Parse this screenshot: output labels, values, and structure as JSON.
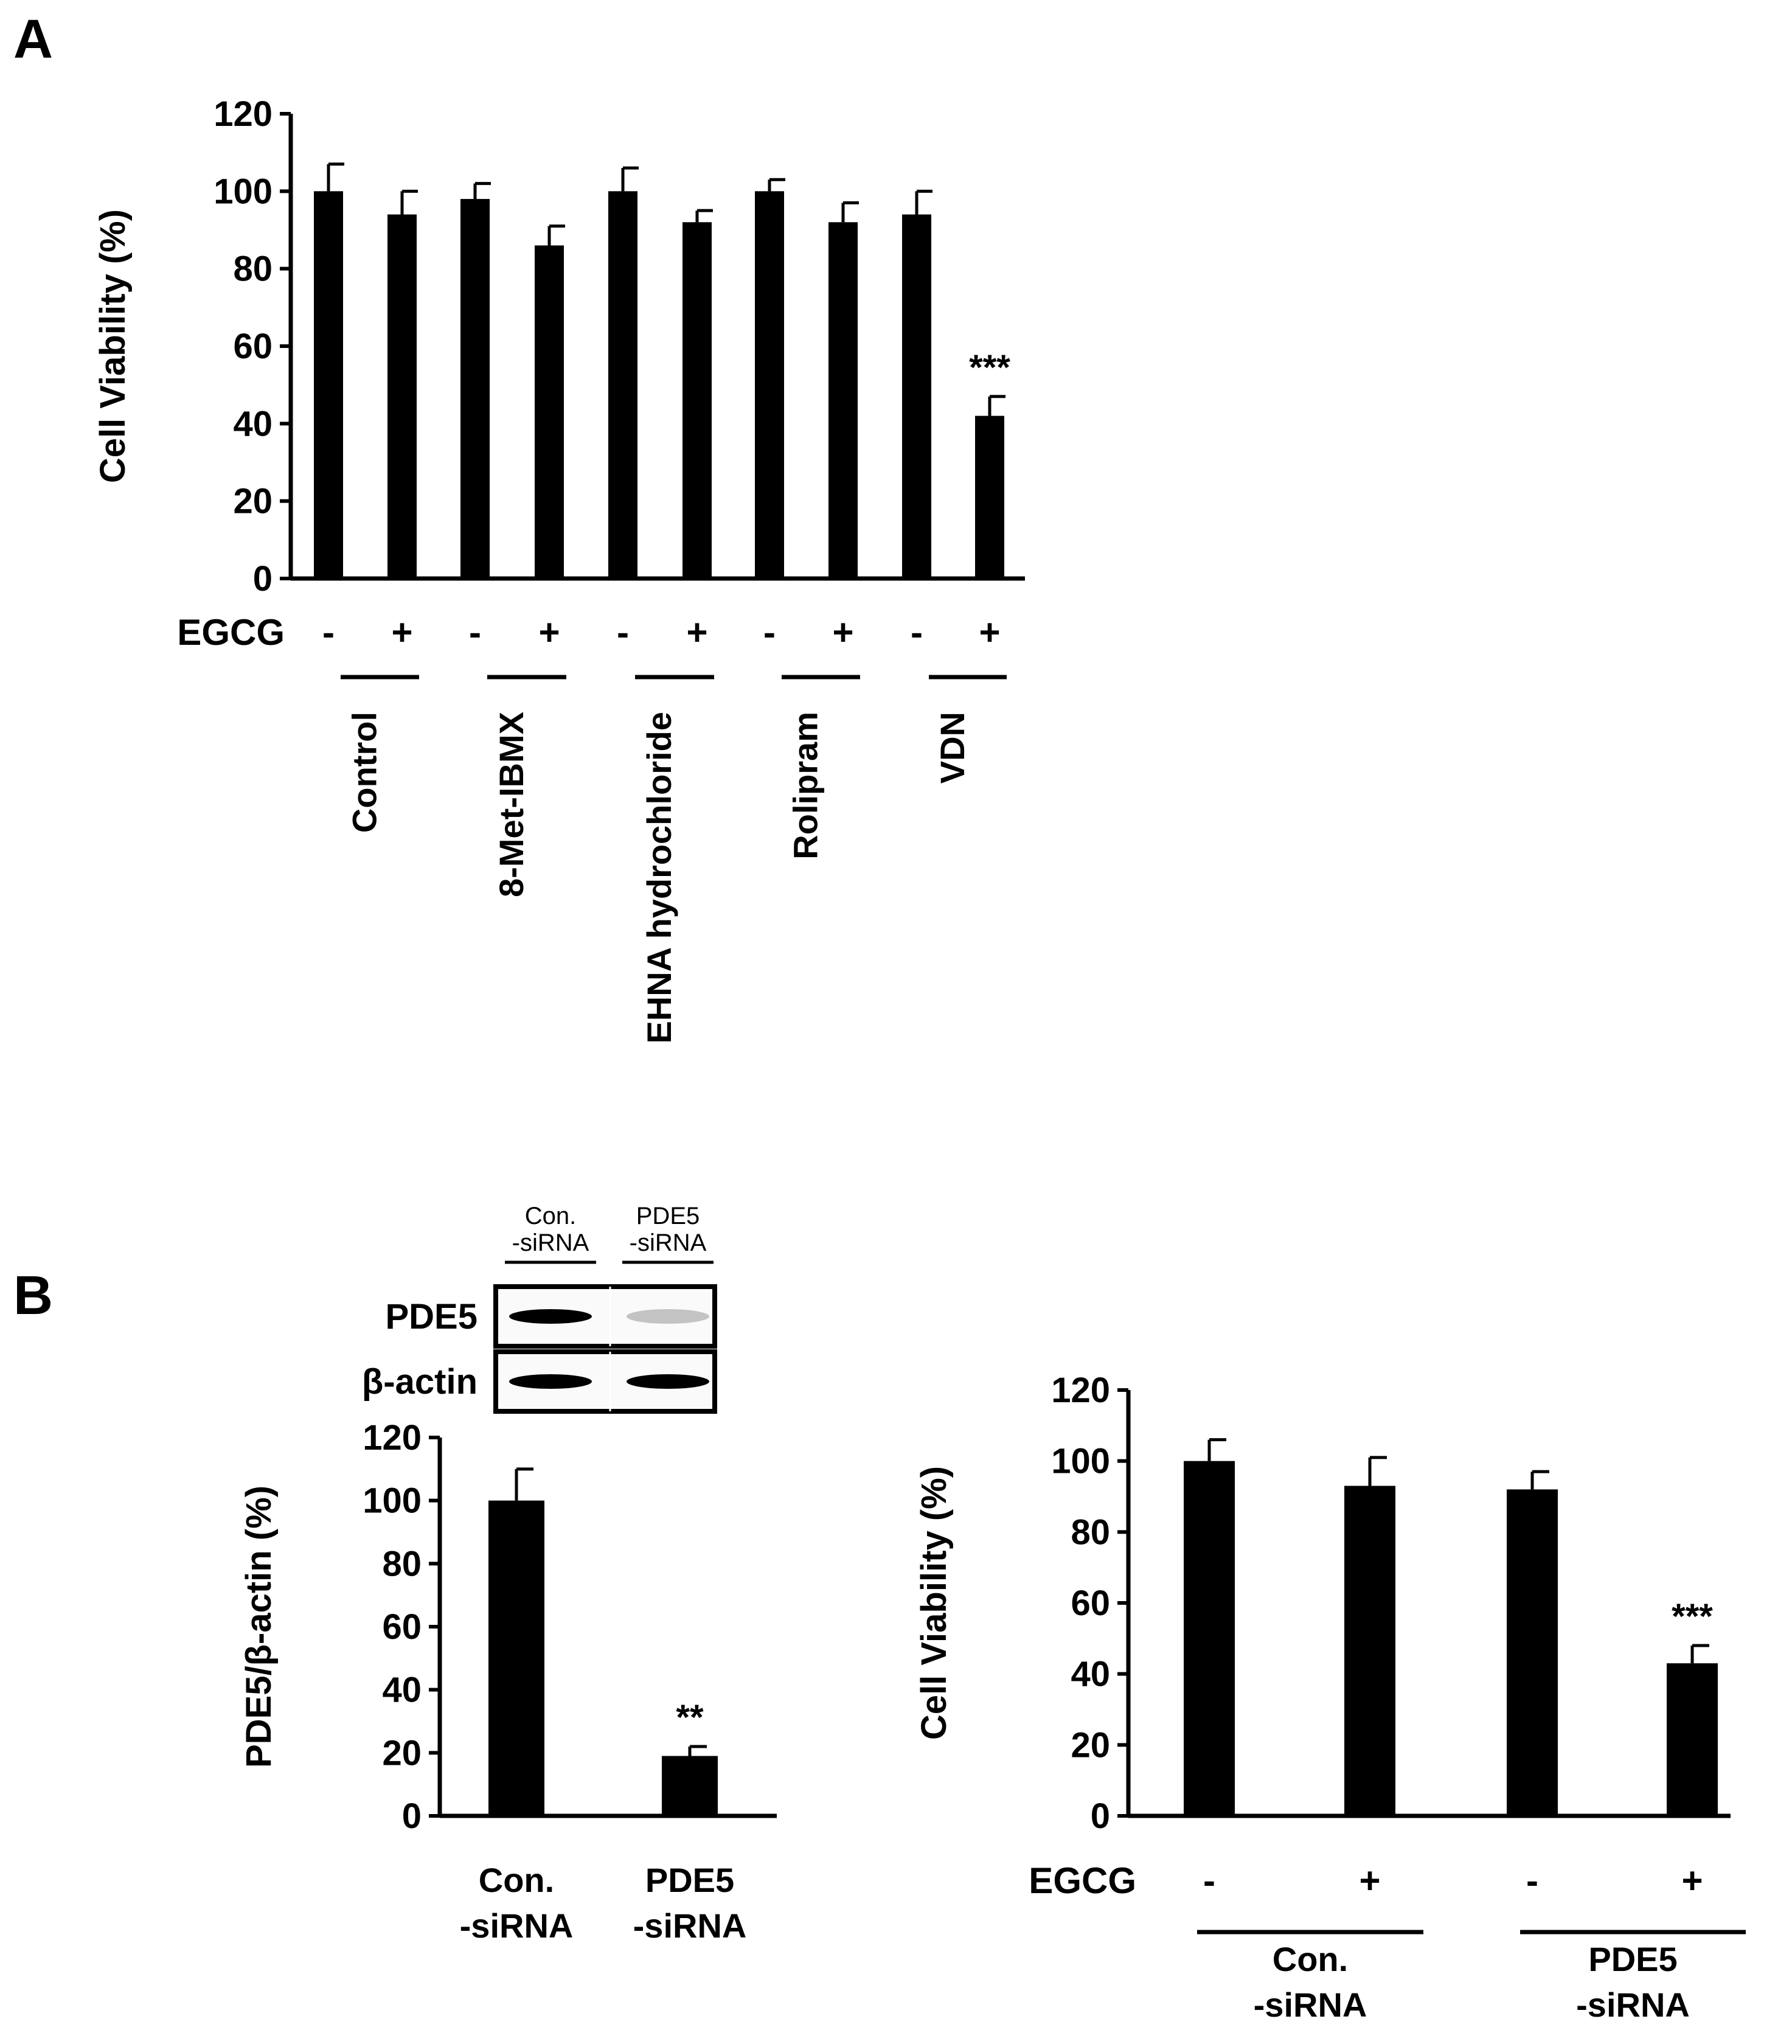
{
  "panels": {
    "a_label": "A",
    "b_label": "B"
  },
  "chart_data": [
    {
      "id": "A",
      "type": "bar",
      "ylabel": "Cell Viability (%)",
      "ylim": [
        0,
        120
      ],
      "yticks": [
        0,
        20,
        40,
        60,
        80,
        100,
        120
      ],
      "row_label": "EGCG",
      "bars": [
        {
          "egcg": "-",
          "value": 100,
          "error": 7
        },
        {
          "egcg": "+",
          "value": 94,
          "error": 6
        },
        {
          "egcg": "-",
          "value": 98,
          "error": 4
        },
        {
          "egcg": "+",
          "value": 86,
          "error": 5
        },
        {
          "egcg": "-",
          "value": 100,
          "error": 6
        },
        {
          "egcg": "+",
          "value": 92,
          "error": 3
        },
        {
          "egcg": "-",
          "value": 100,
          "error": 3
        },
        {
          "egcg": "+",
          "value": 92,
          "error": 5
        },
        {
          "egcg": "-",
          "value": 94,
          "error": 6
        },
        {
          "egcg": "+",
          "value": 42,
          "error": 5,
          "significance": "***"
        }
      ],
      "groups": [
        "Control",
        "8-Met-IBMX",
        "EHNA hydrochloride",
        "Rolipram",
        "VDN"
      ]
    },
    {
      "id": "B-left",
      "type": "bar",
      "ylabel": "PDE5/β-actin (%)",
      "ylim": [
        0,
        120
      ],
      "yticks": [
        0,
        20,
        40,
        60,
        80,
        100,
        120
      ],
      "bars": [
        {
          "value": 100,
          "error": 10
        },
        {
          "value": 19,
          "error": 3,
          "significance": "**"
        }
      ],
      "categories": [
        [
          "Con.",
          "-siRNA"
        ],
        [
          "PDE5",
          "-siRNA"
        ]
      ]
    },
    {
      "id": "B-right",
      "type": "bar",
      "ylabel": "Cell Viability (%)",
      "ylim": [
        0,
        120
      ],
      "yticks": [
        0,
        20,
        40,
        60,
        80,
        100,
        120
      ],
      "row_label": "EGCG",
      "bars": [
        {
          "egcg": "-",
          "value": 100,
          "error": 6
        },
        {
          "egcg": "+",
          "value": 93,
          "error": 8
        },
        {
          "egcg": "-",
          "value": 92,
          "error": 5
        },
        {
          "egcg": "+",
          "value": 43,
          "error": 5,
          "significance": "***"
        }
      ],
      "groups": [
        [
          "Con.",
          "-siRNA"
        ],
        [
          "PDE5",
          "-siRNA"
        ]
      ]
    }
  ],
  "blot": {
    "lanes": [
      [
        "Con.",
        "-siRNA"
      ],
      [
        "PDE5",
        "-siRNA"
      ]
    ],
    "rows": [
      "PDE5",
      "β-actin"
    ]
  }
}
